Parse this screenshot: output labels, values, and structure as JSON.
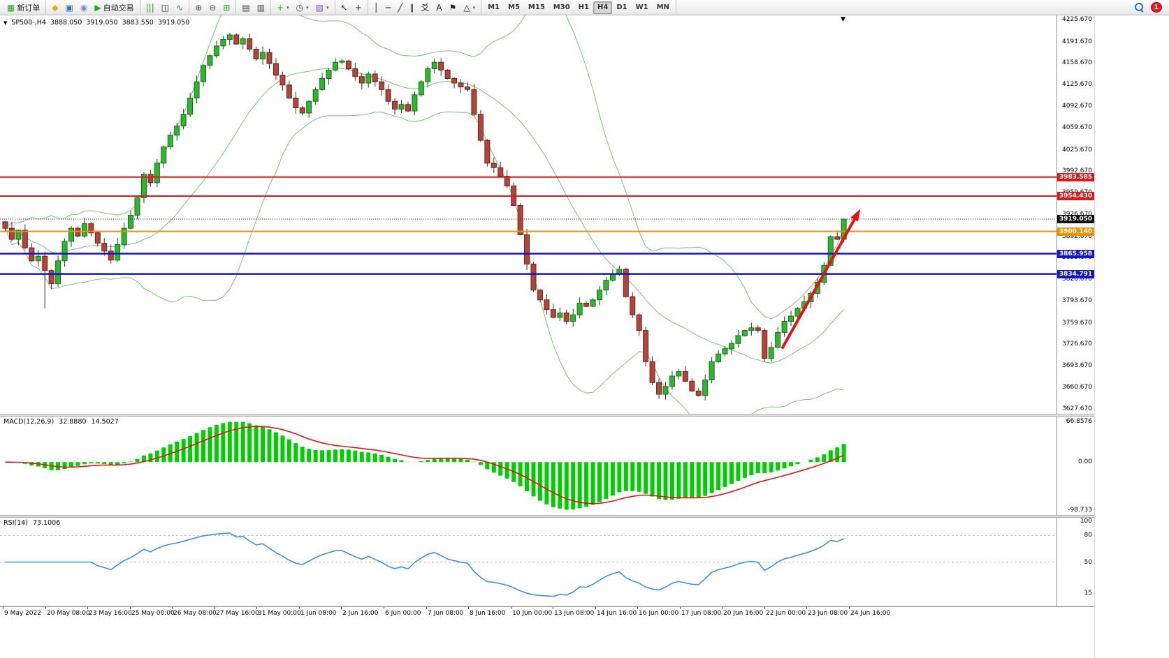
{
  "toolbar": {
    "new_order_label": "新订单",
    "auto_trading_label": "自动交易",
    "timeframes": [
      "M1",
      "M5",
      "M15",
      "M30",
      "H1",
      "H4",
      "D1",
      "W1",
      "MN"
    ],
    "active_timeframe": "H4",
    "notification_count": "1",
    "groups": [
      {
        "items": [
          {
            "name": "new-order-button",
            "glyph": "▦",
            "color": "#2e9e2e",
            "label": "新订单"
          }
        ]
      },
      {
        "items": [
          {
            "name": "mql-editor-button",
            "glyph": "◆",
            "color": "#e6a817"
          },
          {
            "name": "chart-window-button",
            "glyph": "▣",
            "color": "#3a6ebf"
          },
          {
            "name": "community-button",
            "glyph": "◉",
            "color": "#6f8fb0"
          },
          {
            "name": "auto-trading-button",
            "glyph": "▶",
            "color": "#18a818",
            "label": "自动交易"
          }
        ]
      },
      {
        "items": [
          {
            "name": "bars-chart-button",
            "glyph": "|||",
            "color": "#2e7d32"
          },
          {
            "name": "candlestick-chart-button",
            "glyph": "◫",
            "color": "#333333"
          },
          {
            "name": "line-chart-button",
            "glyph": "∿",
            "color": "#2e7d32"
          }
        ]
      },
      {
        "items": [
          {
            "name": "zoom-in-button",
            "glyph": "⊕",
            "color": "#444444"
          },
          {
            "name": "zoom-out-button",
            "glyph": "⊖",
            "color": "#444444"
          },
          {
            "name": "grid-button",
            "glyph": "⊞",
            "color": "#2e9e2e"
          }
        ]
      },
      {
        "items": [
          {
            "name": "tile-windows-button",
            "glyph": "▤",
            "color": "#444444"
          },
          {
            "name": "window-list-button",
            "glyph": "▥",
            "color": "#444444"
          }
        ]
      },
      {
        "items": [
          {
            "name": "indicators-button",
            "glyph": "+",
            "color": "#18a818",
            "caret": true
          },
          {
            "name": "periods-button",
            "glyph": "◷",
            "color": "#444444",
            "caret": true
          },
          {
            "name": "templates-button",
            "glyph": "▧",
            "color": "#7a5c9e",
            "caret": true
          }
        ]
      },
      {
        "items": [
          {
            "name": "cursor-button",
            "glyph": "↖",
            "color": "#222222"
          },
          {
            "name": "crosshair-button",
            "glyph": "+",
            "color": "#222222"
          }
        ]
      },
      {
        "items": [
          {
            "name": "vertical-line-button",
            "glyph": "│",
            "color": "#222222"
          },
          {
            "name": "horizontal-line-button",
            "glyph": "─",
            "color": "#222222"
          },
          {
            "name": "trendline-button",
            "glyph": "╱",
            "color": "#222222"
          },
          {
            "name": "channel-button",
            "glyph": "∥",
            "color": "#222222"
          },
          {
            "name": "fibonacci-button",
            "glyph": "爻",
            "color": "#222222"
          },
          {
            "name": "text-button",
            "glyph": "A",
            "color": "#222222"
          },
          {
            "name": "label-button",
            "glyph": "⚑",
            "color": "#222222"
          },
          {
            "name": "shapes-button",
            "glyph": "△",
            "color": "#222222",
            "caret": true
          }
        ]
      }
    ]
  },
  "chart_data": {
    "type": "candlestick",
    "symbol_line": {
      "symbol": "SP500-,H4",
      "open": "3888.050",
      "high": "3919.050",
      "low": "3883.550",
      "close": "3919.050"
    },
    "price_axis": [
      "4225.670",
      "4191.670",
      "4158.670",
      "4125.670",
      "4092.670",
      "4059.670",
      "4025.670",
      "3992.670",
      "3959.670",
      "3926.670",
      "3892.670",
      "3859.670",
      "3826.670",
      "3793.670",
      "3759.670",
      "3726.670",
      "3693.670",
      "3660.670",
      "3627.670"
    ],
    "price_range": [
      3620,
      4232
    ],
    "levels": [
      {
        "price": 3983.585,
        "label": "3983.585",
        "color": "#d61c1c",
        "style": "solid",
        "width": 2
      },
      {
        "price": 3954.43,
        "label": "3954.430",
        "color": "#d61c1c",
        "style": "solid",
        "width": 2
      },
      {
        "price": 3919.05,
        "label": "3919.050",
        "color": "#101010",
        "style": "dotted",
        "width": 1
      },
      {
        "price": 3900.14,
        "label": "3900.140",
        "color": "#ef9000",
        "style": "solid",
        "width": 2
      },
      {
        "price": 3865.958,
        "label": "3865.958",
        "color": "#1414cc",
        "style": "solid",
        "width": 2.5
      },
      {
        "price": 3834.791,
        "label": "3834.791",
        "color": "#1414cc",
        "style": "solid",
        "width": 2.5
      }
    ],
    "first_open": 3915,
    "closes": [
      3905,
      3888,
      3902,
      3875,
      3855,
      3862,
      3840,
      3820,
      3855,
      3885,
      3905,
      3893,
      3912,
      3898,
      3882,
      3870,
      3856,
      3880,
      3905,
      3925,
      3952,
      3988,
      3975,
      4005,
      4030,
      4048,
      4062,
      4080,
      4105,
      4130,
      4155,
      4170,
      4185,
      4195,
      4202,
      4188,
      4196,
      4180,
      4165,
      4175,
      4158,
      4140,
      4125,
      4105,
      4090,
      4082,
      4100,
      4118,
      4135,
      4148,
      4160,
      4162,
      4150,
      4138,
      4128,
      4142,
      4130,
      4118,
      4100,
      4088,
      4095,
      4085,
      4110,
      4130,
      4150,
      4160,
      4148,
      4135,
      4128,
      4122,
      4118,
      4080,
      4040,
      4005,
      3998,
      3985,
      3970,
      3940,
      3895,
      3850,
      3810,
      3795,
      3780,
      3768,
      3775,
      3762,
      3772,
      3790,
      3785,
      3795,
      3810,
      3825,
      3835,
      3842,
      3800,
      3772,
      3748,
      3700,
      3668,
      3650,
      3662,
      3678,
      3685,
      3670,
      3655,
      3648,
      3672,
      3700,
      3712,
      3720,
      3728,
      3740,
      3748,
      3752,
      3748,
      3705,
      3722,
      3745,
      3762,
      3770,
      3782,
      3792,
      3805,
      3822,
      3848,
      3892,
      3888,
      3919.05
    ],
    "overrides": {
      "6": {
        "l": 3782
      },
      "127": {
        "o": 3888.05,
        "h": 3919.05,
        "l": 3883.55,
        "c": 3919.05
      }
    },
    "candle_up": "#2fb52f",
    "candle_down": "#b2443a",
    "bollinger": {
      "period": 20,
      "deviation": 2,
      "color": "#7dbd7d"
    },
    "arrow": {
      "from_bar": 118,
      "from_price": 3720,
      "to_bar": 129.5,
      "to_price": 3928,
      "color": "#e81010"
    },
    "macd": {
      "label": "MACD(12,26,9)",
      "value_main": "32.8880",
      "value_signal": "14.5027",
      "axis": [
        "66.8576",
        "0.00",
        "-98.733"
      ],
      "hist_color": "#00ce00",
      "signal_color": "#e01414"
    },
    "rsi": {
      "label": "RSI(14)",
      "value": "73.1006",
      "axis": [
        "100",
        "80",
        "50",
        "15"
      ],
      "levels": [
        80,
        50
      ],
      "color": "#3b8fe8"
    },
    "time_axis": [
      "9 May 2022",
      "20 May 08:00",
      "23 May 16:00",
      "25 May 00:00",
      "26 May 08:00",
      "27 May 16:00",
      "31 May 00:00",
      "1 Jun 08:00",
      "2 Jun 16:00",
      "6 Jun 00:00",
      "7 Jun 08:00",
      "8 Jun 16:00",
      "10 Jun 00:00",
      "13 Jun 08:00",
      "14 Jun 16:00",
      "16 Jun 00:00",
      "17 Jun 08:00",
      "20 Jun 16:00",
      "22 Jun 00:00",
      "23 Jun 08:00",
      "24 Jun 16:00"
    ]
  }
}
